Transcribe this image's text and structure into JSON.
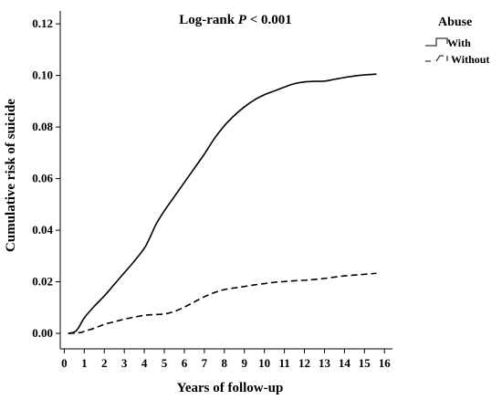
{
  "chart_data": {
    "type": "line",
    "title_prefix": "Log-rank ",
    "title_italic": "P",
    "title_suffix": " < 0.001",
    "xlabel": "Years of follow-up",
    "ylabel": "Cumulative risk of suicide",
    "xlim": [
      -0.2,
      16.4
    ],
    "ylim": [
      -0.006,
      0.125
    ],
    "xticks": [
      0,
      1,
      2,
      3,
      4,
      5,
      6,
      7,
      8,
      9,
      10,
      11,
      12,
      13,
      14,
      15,
      16
    ],
    "yticks": [
      0.0,
      0.02,
      0.04,
      0.06,
      0.08,
      0.1,
      0.12
    ],
    "ytick_labels": [
      "0.00",
      "0.02",
      "0.04",
      "0.06",
      "0.08",
      "0.10",
      "0.12"
    ],
    "grid": false,
    "legend": {
      "title": "Abuse",
      "placement": "top-right-outside",
      "entries": [
        {
          "label": "With",
          "style": "solid"
        },
        {
          "label": "Without",
          "style": "dashed"
        }
      ]
    },
    "series": [
      {
        "name": "With",
        "style": "solid",
        "color": "#000000",
        "x": [
          0.2,
          0.5,
          0.7,
          1.0,
          1.5,
          2.0,
          2.5,
          3.0,
          3.5,
          4.0,
          4.3,
          4.6,
          5.0,
          5.5,
          6.0,
          6.5,
          7.0,
          7.5,
          8.0,
          8.5,
          9.0,
          9.5,
          10.0,
          10.5,
          11.0,
          11.5,
          12.0,
          12.5,
          13.0,
          13.5,
          14.0,
          14.5,
          15.0,
          15.6
        ],
        "y": [
          0.0,
          0.0005,
          0.002,
          0.006,
          0.0105,
          0.0145,
          0.019,
          0.0235,
          0.028,
          0.033,
          0.0375,
          0.0425,
          0.0475,
          0.053,
          0.0585,
          0.064,
          0.0695,
          0.0755,
          0.0805,
          0.0845,
          0.0878,
          0.0905,
          0.0925,
          0.094,
          0.0955,
          0.0968,
          0.0975,
          0.0977,
          0.0978,
          0.0985,
          0.0992,
          0.0998,
          0.1002,
          0.1005
        ]
      },
      {
        "name": "Without",
        "style": "dashed",
        "color": "#000000",
        "x": [
          0.2,
          0.8,
          1.0,
          1.5,
          2.0,
          2.5,
          3.0,
          3.5,
          4.0,
          4.5,
          5.0,
          5.5,
          6.0,
          6.5,
          7.0,
          7.5,
          8.0,
          8.5,
          9.0,
          9.5,
          10.0,
          10.5,
          11.0,
          11.5,
          12.0,
          12.5,
          13.0,
          13.5,
          14.0,
          14.5,
          15.0,
          15.6
        ],
        "y": [
          0.0,
          0.0003,
          0.0008,
          0.002,
          0.0035,
          0.0045,
          0.0055,
          0.0063,
          0.007,
          0.0073,
          0.0075,
          0.0085,
          0.0102,
          0.0122,
          0.0142,
          0.0158,
          0.017,
          0.0176,
          0.0182,
          0.0188,
          0.0193,
          0.0198,
          0.0201,
          0.0204,
          0.0206,
          0.0209,
          0.0213,
          0.0218,
          0.0223,
          0.0226,
          0.0229,
          0.0233
        ]
      }
    ]
  }
}
